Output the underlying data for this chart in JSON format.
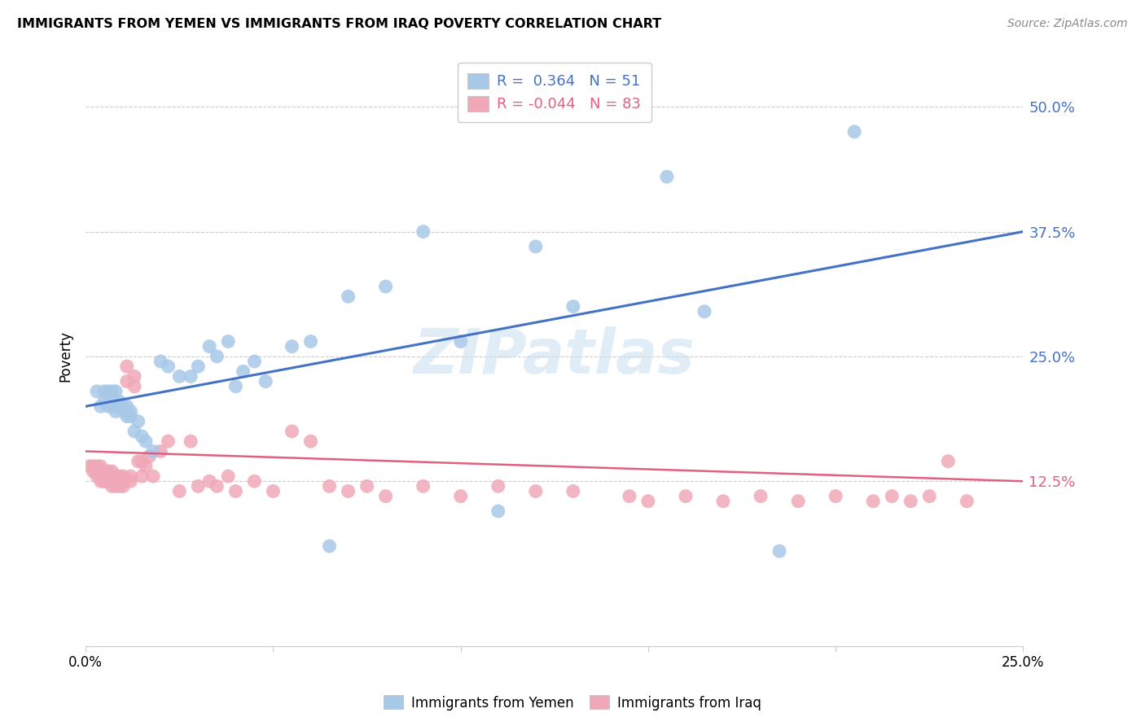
{
  "title": "IMMIGRANTS FROM YEMEN VS IMMIGRANTS FROM IRAQ POVERTY CORRELATION CHART",
  "source": "Source: ZipAtlas.com",
  "ylabel": "Poverty",
  "ytick_values": [
    0.125,
    0.25,
    0.375,
    0.5
  ],
  "xlim": [
    0.0,
    0.25
  ],
  "ylim": [
    -0.04,
    0.54
  ],
  "color_yemen": "#a8c8e8",
  "color_iraq": "#f0a8b8",
  "line_color_yemen": "#4472c4",
  "line_color_iraq": "#e06080",
  "watermark": "ZIPatlas",
  "yemen_x": [
    0.003,
    0.004,
    0.005,
    0.005,
    0.006,
    0.006,
    0.007,
    0.007,
    0.007,
    0.008,
    0.008,
    0.008,
    0.009,
    0.009,
    0.01,
    0.01,
    0.011,
    0.011,
    0.012,
    0.012,
    0.013,
    0.014,
    0.015,
    0.016,
    0.018,
    0.02,
    0.022,
    0.025,
    0.028,
    0.03,
    0.033,
    0.035,
    0.038,
    0.04,
    0.042,
    0.045,
    0.048,
    0.055,
    0.06,
    0.065,
    0.07,
    0.08,
    0.09,
    0.1,
    0.11,
    0.12,
    0.13,
    0.155,
    0.165,
    0.185,
    0.205
  ],
  "yemen_y": [
    0.215,
    0.2,
    0.215,
    0.205,
    0.2,
    0.215,
    0.215,
    0.205,
    0.2,
    0.215,
    0.195,
    0.2,
    0.2,
    0.205,
    0.195,
    0.2,
    0.2,
    0.19,
    0.19,
    0.195,
    0.175,
    0.185,
    0.17,
    0.165,
    0.155,
    0.245,
    0.24,
    0.23,
    0.23,
    0.24,
    0.26,
    0.25,
    0.265,
    0.22,
    0.235,
    0.245,
    0.225,
    0.26,
    0.265,
    0.06,
    0.31,
    0.32,
    0.375,
    0.265,
    0.095,
    0.36,
    0.3,
    0.43,
    0.295,
    0.055,
    0.475
  ],
  "iraq_x": [
    0.001,
    0.002,
    0.002,
    0.003,
    0.003,
    0.003,
    0.004,
    0.004,
    0.004,
    0.004,
    0.004,
    0.005,
    0.005,
    0.005,
    0.005,
    0.005,
    0.005,
    0.006,
    0.006,
    0.006,
    0.006,
    0.007,
    0.007,
    0.007,
    0.007,
    0.007,
    0.007,
    0.008,
    0.008,
    0.008,
    0.009,
    0.009,
    0.009,
    0.01,
    0.01,
    0.01,
    0.011,
    0.011,
    0.012,
    0.012,
    0.013,
    0.013,
    0.014,
    0.015,
    0.015,
    0.016,
    0.017,
    0.018,
    0.02,
    0.022,
    0.025,
    0.028,
    0.03,
    0.033,
    0.035,
    0.038,
    0.04,
    0.045,
    0.05,
    0.055,
    0.06,
    0.065,
    0.07,
    0.075,
    0.08,
    0.09,
    0.1,
    0.11,
    0.12,
    0.13,
    0.145,
    0.15,
    0.16,
    0.17,
    0.18,
    0.19,
    0.2,
    0.21,
    0.215,
    0.22,
    0.225,
    0.23,
    0.235
  ],
  "iraq_y": [
    0.14,
    0.135,
    0.14,
    0.13,
    0.135,
    0.14,
    0.13,
    0.135,
    0.125,
    0.13,
    0.14,
    0.13,
    0.125,
    0.135,
    0.13,
    0.125,
    0.13,
    0.13,
    0.125,
    0.135,
    0.13,
    0.125,
    0.13,
    0.135,
    0.13,
    0.12,
    0.125,
    0.12,
    0.125,
    0.13,
    0.125,
    0.12,
    0.13,
    0.12,
    0.125,
    0.13,
    0.24,
    0.225,
    0.125,
    0.13,
    0.23,
    0.22,
    0.145,
    0.145,
    0.13,
    0.14,
    0.15,
    0.13,
    0.155,
    0.165,
    0.115,
    0.165,
    0.12,
    0.125,
    0.12,
    0.13,
    0.115,
    0.125,
    0.115,
    0.175,
    0.165,
    0.12,
    0.115,
    0.12,
    0.11,
    0.12,
    0.11,
    0.12,
    0.115,
    0.115,
    0.11,
    0.105,
    0.11,
    0.105,
    0.11,
    0.105,
    0.11,
    0.105,
    0.11,
    0.105,
    0.11,
    0.145,
    0.105
  ],
  "blue_line_x0": 0.0,
  "blue_line_y0": 0.2,
  "blue_line_x1": 0.25,
  "blue_line_y1": 0.375,
  "pink_line_x0": 0.0,
  "pink_line_y0": 0.155,
  "pink_line_x1": 0.25,
  "pink_line_y1": 0.125
}
